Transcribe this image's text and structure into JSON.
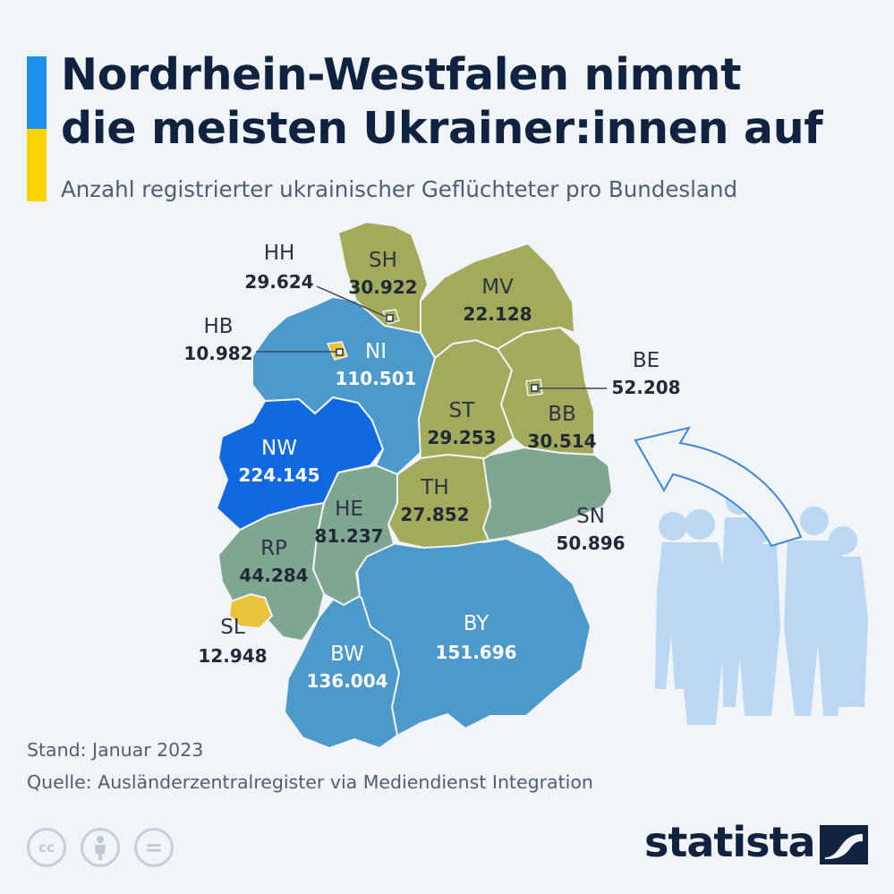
{
  "header": {
    "title_line1": "Nordrhein-Westfalen nimmt",
    "title_line2": "die meisten Ukrainer:innen auf",
    "subtitle": "Anzahl registrierter ukrainischer Geflüchteter pro Bundesland",
    "flag_colors": [
      "#1e90ea",
      "#ffd400"
    ]
  },
  "map": {
    "states": [
      {
        "code": "SH",
        "value": "30.922",
        "color": "#a3aa5c"
      },
      {
        "code": "HH",
        "value": "29.624",
        "color": "#a3aa5c"
      },
      {
        "code": "MV",
        "value": "22.128",
        "color": "#a3aa5c"
      },
      {
        "code": "HB",
        "value": "10.982",
        "color": "#e9c43a"
      },
      {
        "code": "NI",
        "value": "110.501",
        "color": "#4d99cc"
      },
      {
        "code": "BE",
        "value": "52.208",
        "color": "#a3aa5c"
      },
      {
        "code": "ST",
        "value": "29.253",
        "color": "#a3aa5c"
      },
      {
        "code": "BB",
        "value": "30.514",
        "color": "#a3aa5c"
      },
      {
        "code": "NW",
        "value": "224.145",
        "color": "#1268e0"
      },
      {
        "code": "TH",
        "value": "27.852",
        "color": "#a3aa5c"
      },
      {
        "code": "SN",
        "value": "50.896",
        "color": "#80a692"
      },
      {
        "code": "HE",
        "value": "81.237",
        "color": "#80a692"
      },
      {
        "code": "RP",
        "value": "44.284",
        "color": "#80a692"
      },
      {
        "code": "SL",
        "value": "12.948",
        "color": "#e9c43a"
      },
      {
        "code": "BY",
        "value": "151.696",
        "color": "#4d99cc"
      },
      {
        "code": "BW",
        "value": "136.004",
        "color": "#4d99cc"
      }
    ]
  },
  "footer": {
    "stand": "Stand: Januar 2023",
    "source": "Quelle: Ausländerzentralregister via Mediendienst Integration"
  },
  "license": {
    "cc": "cc",
    "by": "by-icon",
    "nd": "="
  },
  "brand": {
    "name": "statista"
  }
}
